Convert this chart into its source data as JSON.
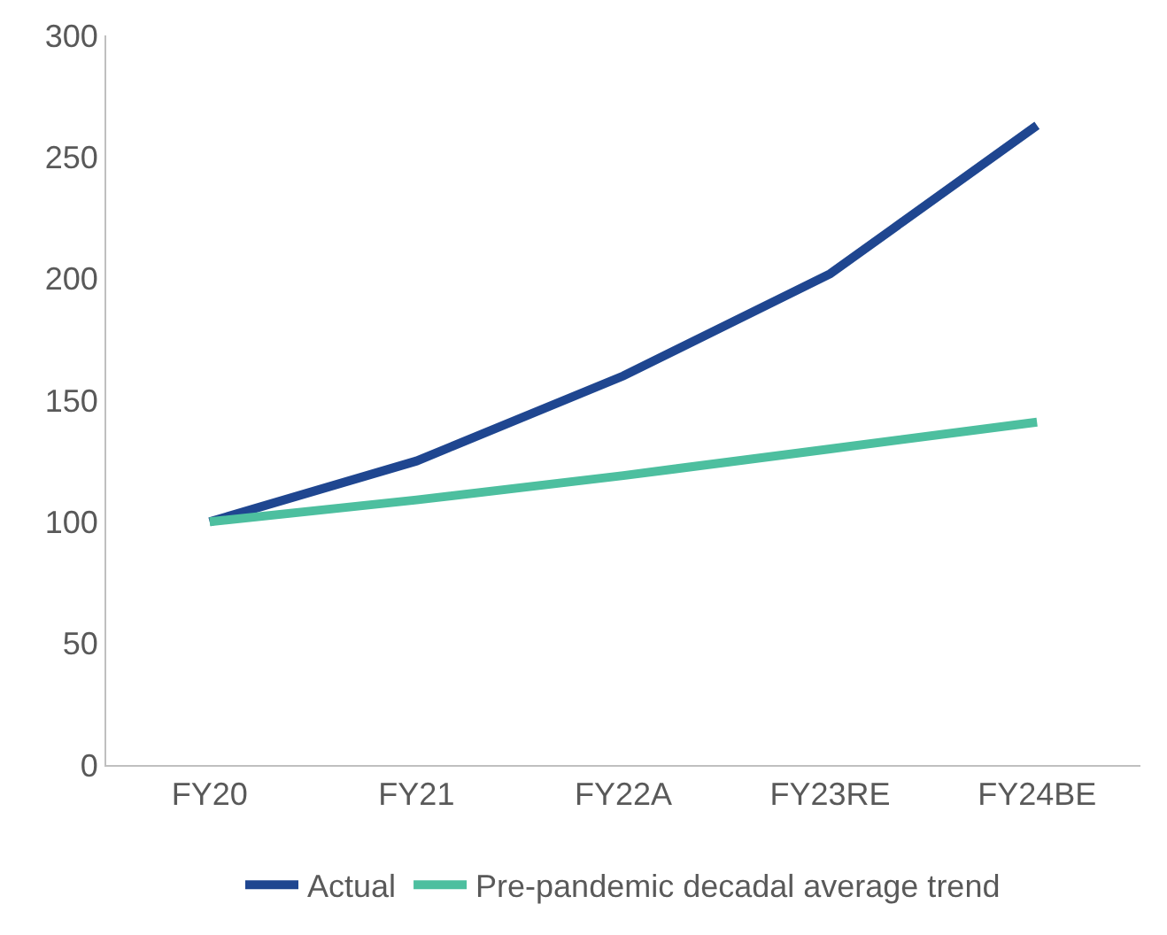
{
  "chart_data": {
    "type": "line",
    "categories": [
      "FY20",
      "FY21",
      "FY22A",
      "FY23RE",
      "FY24BE"
    ],
    "series": [
      {
        "name": "Actual",
        "color": "#1f4690",
        "values": [
          100,
          125,
          160,
          202,
          263
        ]
      },
      {
        "name": "Pre-pandemic decadal average trend",
        "color": "#4dbf9f",
        "values": [
          100,
          109,
          119,
          130,
          141
        ]
      }
    ],
    "ylim": [
      0,
      300
    ],
    "yticks": [
      0,
      50,
      100,
      150,
      200,
      250,
      300
    ],
    "grid": false,
    "legend": "bottom",
    "marker": "none",
    "line_style": "solid"
  }
}
